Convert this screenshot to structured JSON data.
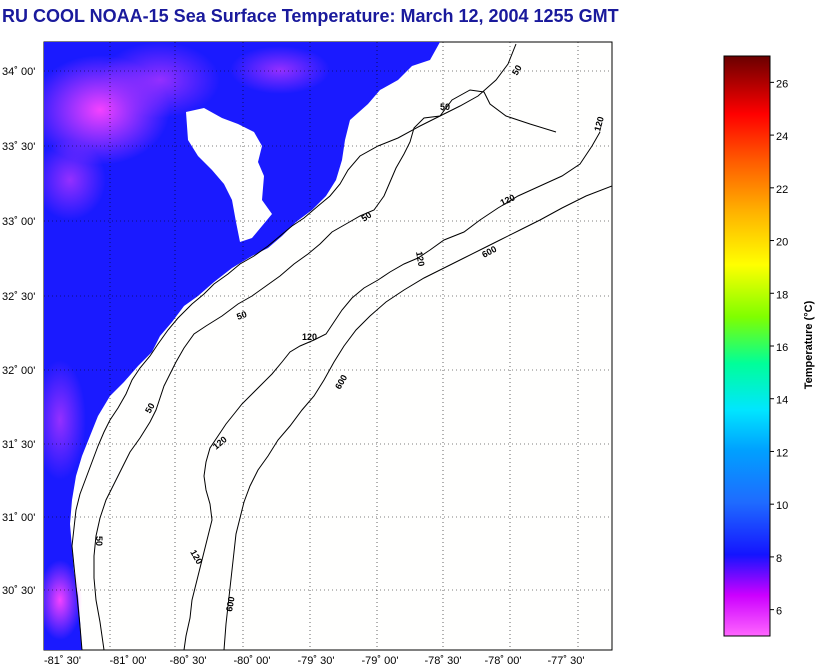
{
  "title": "RU COOL  NOAA-15  Sea Surface Temperature:  March 12, 2004 1255 GMT",
  "lat_labels": [
    "34˚ 00'",
    "33˚ 30'",
    "33˚ 00'",
    "32˚ 30'",
    "32˚ 00'",
    "31˚ 30'",
    "31˚ 00'",
    "30˚ 30'"
  ],
  "lon_labels": [
    "-81˚ 30'",
    "-81˚ 00'",
    "-80˚ 30'",
    "-80˚ 00'",
    "-79˚ 30'",
    "-79˚ 00'",
    "-78˚ 30'",
    "-78˚ 00'",
    "-77˚ 30'"
  ],
  "contour_labels": [
    "50",
    "50",
    "50",
    "50",
    "50",
    "50",
    "120",
    "120",
    "120",
    "120",
    "120",
    "120",
    "600",
    "600",
    "600"
  ],
  "colorbar": {
    "label": "Temperature (°C)",
    "ticks": [
      "26",
      "24",
      "22",
      "20",
      "18",
      "16",
      "14",
      "12",
      "10",
      "8",
      "6"
    ],
    "range": [
      5,
      27
    ],
    "colors": [
      "#ff33ff",
      "#cc00ff",
      "#0000ff",
      "#1f6bff",
      "#00cccc",
      "#00e6ff",
      "#00ff66",
      "#b3ff00",
      "#ffff00",
      "#ffb300",
      "#ff6600",
      "#ff0000",
      "#a00000",
      "#5a0000"
    ]
  }
}
